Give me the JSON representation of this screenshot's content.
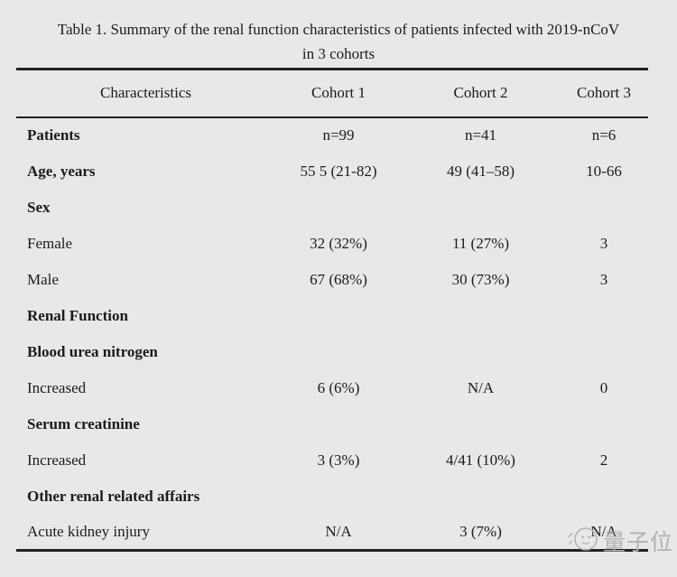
{
  "title": {
    "line1": "Table 1. Summary of the renal function characteristics of patients infected with 2019-nCoV",
    "line2": "in 3 cohorts"
  },
  "table": {
    "columns": [
      "Characteristics",
      "Cohort 1",
      "Cohort 2",
      "Cohort 3"
    ],
    "rows": [
      {
        "label": "Patients",
        "bold": true,
        "values": [
          "n=99",
          "n=41",
          "n=6"
        ]
      },
      {
        "label": "Age, years",
        "bold": true,
        "values": [
          "55 5 (21-82)",
          "49 (41–58)",
          "10-66"
        ]
      },
      {
        "label": "Sex",
        "bold": true,
        "values": [
          "",
          "",
          ""
        ]
      },
      {
        "label": "Female",
        "bold": false,
        "values": [
          "32 (32%)",
          "11 (27%)",
          "3"
        ]
      },
      {
        "label": "Male",
        "bold": false,
        "values": [
          "67 (68%)",
          "30 (73%)",
          "3"
        ]
      },
      {
        "label": "Renal Function",
        "bold": true,
        "values": [
          "",
          "",
          ""
        ]
      },
      {
        "label": "Blood urea nitrogen",
        "bold": true,
        "values": [
          "",
          "",
          ""
        ]
      },
      {
        "label": "Increased",
        "bold": false,
        "values": [
          "6 (6%)",
          "N/A",
          "0"
        ]
      },
      {
        "label": "Serum creatinine",
        "bold": true,
        "values": [
          "",
          "",
          ""
        ]
      },
      {
        "label": "Increased",
        "bold": false,
        "values": [
          "3 (3%)",
          "4/41 (10%)",
          "2"
        ]
      },
      {
        "label": "Other renal related affairs",
        "bold": true,
        "values": [
          "",
          "",
          ""
        ]
      },
      {
        "label": "Acute kidney injury",
        "bold": false,
        "values": [
          "N/A",
          "3 (7%)",
          "N/A"
        ]
      }
    ]
  },
  "watermark": {
    "text": "量子位"
  },
  "colors": {
    "background": "#e8e8e8",
    "text": "#1b1b1b",
    "rule": "#222222",
    "watermark": "#b2b2b2"
  }
}
